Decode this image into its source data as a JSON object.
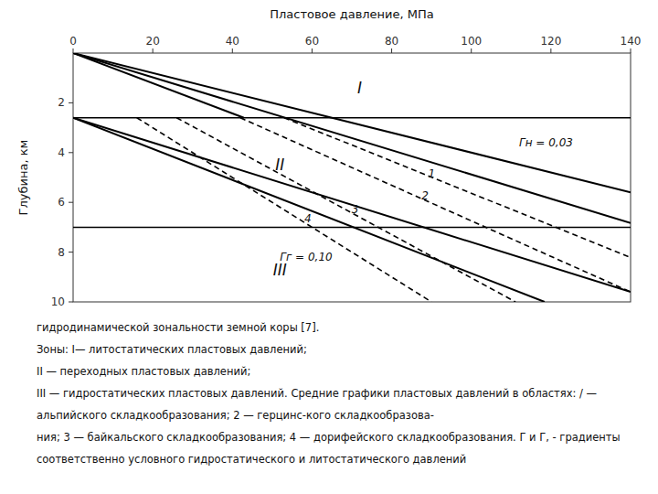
{
  "chart_data": {
    "type": "line",
    "xlabel": "Пластовое давление, МПа",
    "ylabel": "Глубина, км",
    "xlim": [
      0,
      140
    ],
    "ylim": [
      10,
      0
    ],
    "xticks": [
      0,
      20,
      40,
      60,
      80,
      100,
      120,
      140
    ],
    "yticks": [
      2,
      4,
      6,
      8,
      10
    ],
    "grid": false,
    "color": "#000000",
    "hlines": [
      2.6,
      7.0
    ],
    "series": [
      {
        "x": [
          0,
          140
        ],
        "values": [
          0,
          5.6
        ],
        "line_style": "solid"
      },
      {
        "x": [
          0,
          140
        ],
        "values": [
          0,
          6.829268292682927
        ],
        "line_style": "solid"
      },
      {
        "x": [
          0,
          42.9
        ],
        "values": [
          0,
          2.6
        ],
        "line_style": "solid"
      },
      {
        "x": [
          0,
          140
        ],
        "values": [
          2.6,
          9.6
        ],
        "line_style": "solid"
      },
      {
        "x": [
          0,
          118.4
        ],
        "values": [
          2.6,
          10
        ],
        "line_style": "solid"
      },
      {
        "name": "1",
        "x": [
          53,
          140
        ],
        "values": [
          2.6,
          8.212903225806452
        ],
        "line_style": "dashed"
      },
      {
        "name": "2",
        "x": [
          42,
          140
        ],
        "values": [
          2.6,
          9.6
        ],
        "line_style": "dashed"
      },
      {
        "name": "3",
        "x": [
          26,
          111.1
        ],
        "values": [
          2.6,
          10
        ],
        "line_style": "dashed"
      },
      {
        "name": "4",
        "x": [
          16,
          90
        ],
        "values": [
          2.6,
          10
        ],
        "line_style": "dashed"
      }
    ],
    "annotations": [
      "I",
      "II",
      "III",
      "Гн = 0,03",
      "Гг = 0,10"
    ],
    "caption": [
      "гидродинамической зональности земной коры [7].",
      "Зоны: I— литостатических пластовых давлений;",
      "II — переходных пластовых давлений;",
      "III — гидростатических пластовых давлений. Средние графики пластовых давлений в областях: / —",
      "альпийского складкообразования; 2 — герцинс-кого складкообразова-",
      "ния; 3 — байкальского складкообразования; 4 — дорифейского складкообразования. Г и Г, - градиенты",
      "соответственно условного гидростатического и литостатического давлений"
    ]
  }
}
